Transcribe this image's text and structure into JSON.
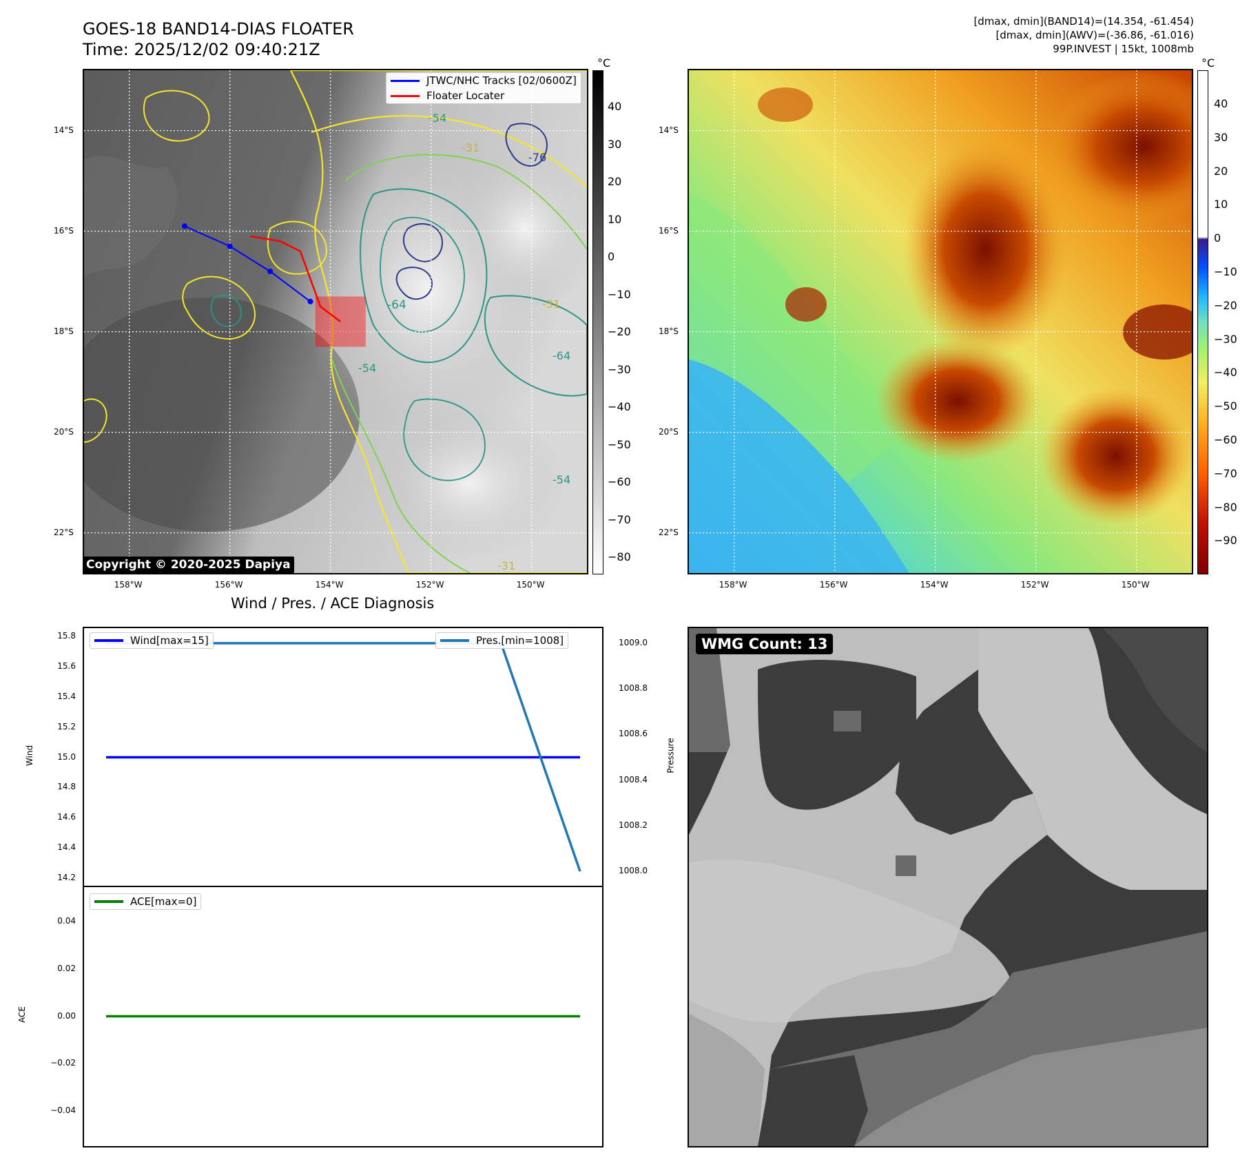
{
  "header": {
    "title_line1": "GOES-18 BAND14-DIAS FLOATER",
    "title_line2": "Time: 2025/12/02 09:40:21Z",
    "stats_line1": "[dmax, dmin](BAND14)=(14.354, -61.454)",
    "stats_line2": "[dmax, dmin](AWV)=(-36.86, -61.016)",
    "stats_line3": "99P.INVEST | 15kt, 1008mb"
  },
  "maps": {
    "lat_ticks": [
      "14°S",
      "16°S",
      "18°S",
      "20°S",
      "22°S"
    ],
    "lon_ticks": [
      "158°W",
      "156°W",
      "154°W",
      "152°W",
      "150°W"
    ],
    "lon_range": [
      -158.9,
      -148.9
    ],
    "lat_range": [
      -22.8,
      -12.8
    ],
    "colorbar_unit": "°C",
    "gray_colorbar_ticks": [
      "40",
      "30",
      "20",
      "10",
      "0",
      "−10",
      "−20",
      "−30",
      "−40",
      "−50",
      "−60",
      "−70",
      "−80"
    ],
    "color_colorbar_ticks": [
      "40",
      "30",
      "20",
      "10",
      "0",
      "−10",
      "−20",
      "−30",
      "−40",
      "−50",
      "−60",
      "−70",
      "−80",
      "−90"
    ],
    "copyright": "Copyright © 2020-2025 Dapiya",
    "legend": {
      "track_label": "JTWC/NHC Tracks [02/0600Z]",
      "locator_label": "Floater Locater"
    },
    "contour_labels": [
      "-31",
      "-54",
      "-64",
      "-76",
      "-64",
      "-54",
      "-31",
      "-54",
      "-31"
    ],
    "colors": {
      "track": "#0000ff",
      "locator": "#ff0000",
      "contour_yellow": "#f5e62a",
      "contour_green": "#7fd34e",
      "contour_teal": "#2a9487",
      "contour_navy": "#2b3a87"
    }
  },
  "track_points": [
    {
      "lon": -156.9,
      "lat": -15.9
    },
    {
      "lon": -156.0,
      "lat": -16.3
    },
    {
      "lon": -155.2,
      "lat": -16.8
    },
    {
      "lon": -154.4,
      "lat": -17.4
    }
  ],
  "locator_points": [
    {
      "lon": -155.6,
      "lat": -16.1
    },
    {
      "lon": -155.0,
      "lat": -16.2
    },
    {
      "lon": -154.6,
      "lat": -16.4
    },
    {
      "lon": -154.2,
      "lat": -17.5
    },
    {
      "lon": -153.8,
      "lat": -17.8
    }
  ],
  "floater_box": {
    "lon_min": -154.3,
    "lon_max": -153.3,
    "lat_min": -18.3,
    "lat_max": -17.3
  },
  "chart_data": [
    {
      "type": "line",
      "title": "Wind / Pres. / ACE Diagnosis",
      "ylabel": "Wind",
      "y2label": "Pressure",
      "ylim": [
        14.2,
        15.8
      ],
      "y2lim": [
        1007.97,
        1009.03
      ],
      "yticks": [
        "15.8",
        "15.6",
        "15.4",
        "15.2",
        "15.0",
        "14.8",
        "14.6",
        "14.4",
        "14.2"
      ],
      "y2ticks": [
        "1009.0",
        "1008.8",
        "1008.6",
        "1008.4",
        "1008.2",
        "1008.0"
      ],
      "x": [
        0,
        1,
        2,
        3,
        4,
        5,
        6
      ],
      "series": [
        {
          "name": "Wind[max=15]",
          "axis": "left",
          "color": "#0000ff",
          "values": [
            15,
            15,
            15,
            15,
            15,
            15,
            15
          ]
        },
        {
          "name": "Pres.[min=1008]",
          "axis": "right",
          "color": "#1f77b4",
          "values": [
            1009,
            1009,
            1009,
            1009,
            1009,
            1009,
            1008
          ]
        }
      ]
    },
    {
      "type": "line",
      "ylabel": "ACE",
      "ylim": [
        -0.055,
        0.055
      ],
      "yticks": [
        "0.04",
        "0.02",
        "0.00",
        "−0.02",
        "−0.04"
      ],
      "x": [
        0,
        1,
        2,
        3,
        4,
        5,
        6
      ],
      "series": [
        {
          "name": "ACE[max=0]",
          "axis": "left",
          "color": "#008000",
          "values": [
            0,
            0,
            0,
            0,
            0,
            0,
            0
          ]
        }
      ]
    }
  ],
  "wmg": {
    "label": "WMG Count: 13"
  }
}
